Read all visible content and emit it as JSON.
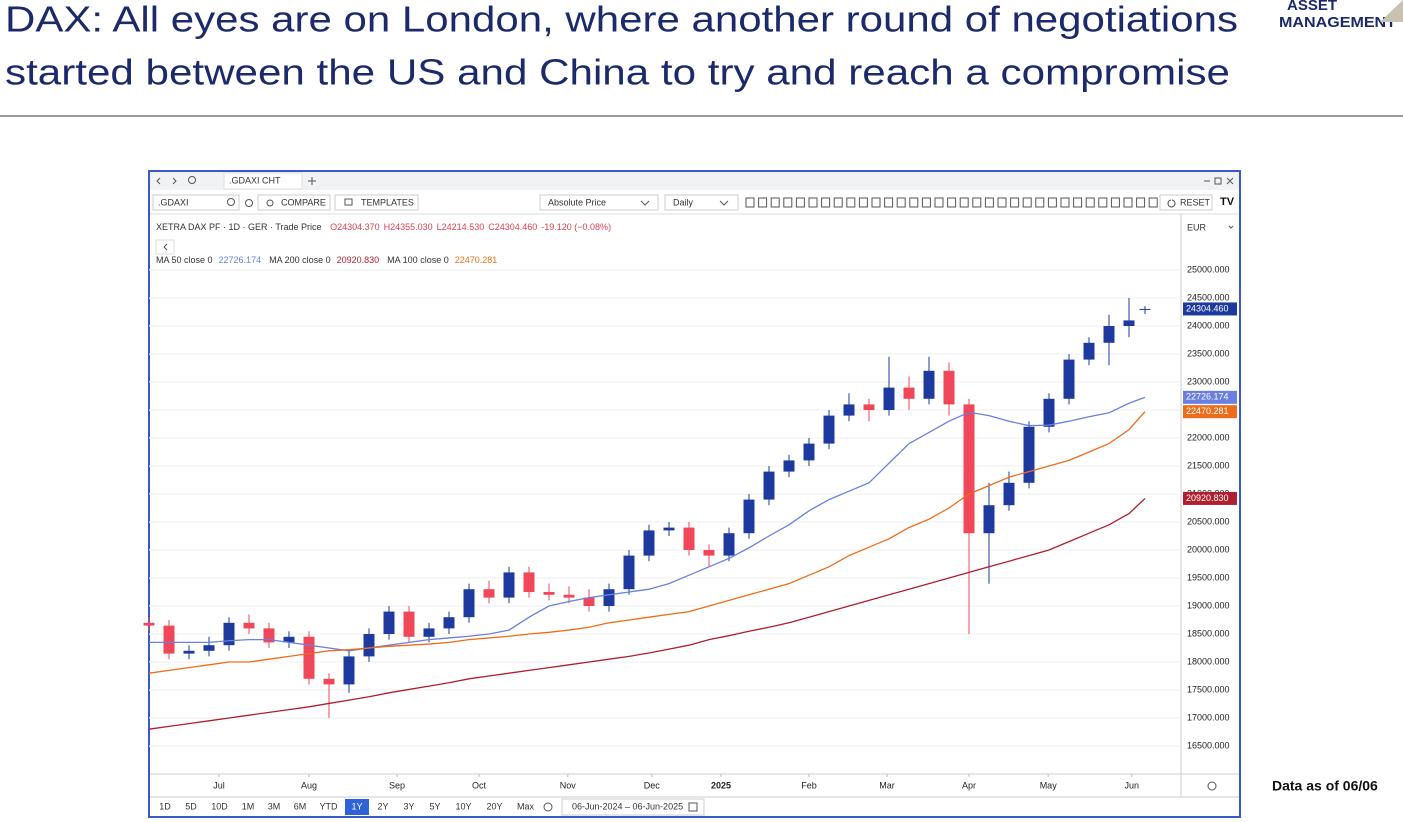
{
  "header": {
    "title_lines": [
      "DAX: All eyes are on London, where another round of negotiations",
      "started between the US and China to try and reach a compromise"
    ],
    "logo": [
      "ASSET",
      "MANAGEMENT"
    ]
  },
  "window": {
    "tab": ".GDAXI CHT",
    "symbol": ".GDAXI",
    "compare": "COMPARE",
    "templates": "TEMPLATES",
    "price_mode": "Absolute Price",
    "interval": "Daily",
    "reset": "RESET",
    "currency": "EUR",
    "periods": [
      "1D",
      "5D",
      "10D",
      "1M",
      "3M",
      "6M",
      "YTD",
      "1Y",
      "2Y",
      "3Y",
      "5Y",
      "10Y",
      "20Y",
      "Max"
    ],
    "active_period": "1Y",
    "date_range": "06-Jun-2024 – 06-Jun-2025"
  },
  "note": "Data as of 06/06",
  "chart_data": {
    "type": "candlestick",
    "instrument": "XETRA DAX PF · 1D · GER · Trade Price",
    "ohlc_labels": [
      "O24304.370",
      "H24355.030",
      "L24214.530",
      "C24304.460"
    ],
    "change_label": "-19.120 (−0.08%)",
    "up_color": "#1e3a9e",
    "down_color": "#f0475a",
    "x": [
      0,
      5,
      10,
      15,
      20,
      25,
      30,
      35,
      40,
      45,
      50,
      55,
      60,
      65,
      70,
      75,
      80,
      85,
      90,
      95,
      100,
      105,
      110,
      115,
      120,
      125,
      130,
      135,
      140,
      145,
      150,
      155,
      160,
      165,
      170,
      175,
      180,
      185,
      190,
      195,
      200,
      205,
      210,
      215,
      220,
      225,
      230,
      235,
      240,
      245,
      249
    ],
    "open": [
      18700,
      18650,
      18150,
      18200,
      18300,
      18700,
      18600,
      18350,
      18450,
      17700,
      17600,
      18100,
      18500,
      18900,
      18450,
      18600,
      18800,
      19300,
      19150,
      19600,
      19250,
      19200,
      19150,
      19000,
      19300,
      19900,
      20350,
      20400,
      20000,
      19900,
      20300,
      20900,
      21400,
      21600,
      21900,
      22400,
      22600,
      22500,
      22900,
      22700,
      23200,
      22600,
      20300,
      20800,
      21200,
      22200,
      22700,
      23400,
      23700,
      24000,
      24304.37
    ],
    "high": [
      18800,
      18750,
      18300,
      18450,
      18800,
      18850,
      18700,
      18550,
      18550,
      17800,
      18200,
      18600,
      19000,
      19000,
      18700,
      18900,
      19400,
      19450,
      19700,
      19700,
      19400,
      19350,
      19300,
      19400,
      20000,
      20450,
      20500,
      20500,
      20100,
      20400,
      21000,
      21500,
      21700,
      22000,
      22500,
      22800,
      22700,
      23450,
      23100,
      23450,
      23350,
      22700,
      21200,
      21400,
      22300,
      22800,
      23500,
      23800,
      24200,
      24500,
      24355.03
    ],
    "low": [
      18550,
      18050,
      18050,
      18100,
      18200,
      18500,
      18250,
      18250,
      17600,
      17000,
      17450,
      18000,
      18400,
      18350,
      18350,
      18500,
      18700,
      19050,
      19050,
      19150,
      19100,
      19050,
      18900,
      18900,
      19200,
      19800,
      20250,
      19900,
      19700,
      19800,
      20200,
      20800,
      21300,
      21500,
      21800,
      22300,
      22300,
      22400,
      22500,
      22600,
      22400,
      18500,
      19400,
      20700,
      21100,
      22100,
      22600,
      23300,
      23300,
      23800,
      24214.53
    ],
    "close": [
      18650,
      18150,
      18200,
      18300,
      18700,
      18600,
      18350,
      18450,
      17700,
      17600,
      18100,
      18500,
      18900,
      18450,
      18600,
      18800,
      19300,
      19150,
      19600,
      19250,
      19200,
      19150,
      19000,
      19300,
      19900,
      20350,
      20400,
      20000,
      19900,
      20300,
      20900,
      21400,
      21600,
      21900,
      22400,
      22600,
      22500,
      22900,
      22700,
      23200,
      22600,
      20300,
      20800,
      21200,
      22200,
      22700,
      23400,
      23700,
      24000,
      24100,
      24304.46
    ],
    "last_label": "24304.460",
    "series": [
      {
        "name": "MA 50 close 0",
        "color": "#6b7fe0",
        "last_label": "22726.174",
        "values": [
          18350,
          18350,
          18350,
          18350,
          18380,
          18400,
          18400,
          18350,
          18300,
          18250,
          18200,
          18250,
          18300,
          18350,
          18400,
          18430,
          18460,
          18500,
          18570,
          18800,
          19000,
          19080,
          19150,
          19200,
          19250,
          19300,
          19400,
          19550,
          19700,
          19850,
          20040,
          20250,
          20450,
          20700,
          20900,
          21050,
          21200,
          21550,
          21900,
          22100,
          22300,
          22460,
          22400,
          22300,
          22220,
          22230,
          22300,
          22380,
          22450,
          22620,
          22726.174
        ]
      },
      {
        "name": "MA 200 close 0",
        "color": "#b01e2f",
        "last_label": "20920.830",
        "values": [
          16800,
          16850,
          16900,
          16950,
          17000,
          17050,
          17100,
          17150,
          17200,
          17260,
          17320,
          17380,
          17450,
          17510,
          17570,
          17630,
          17700,
          17750,
          17800,
          17850,
          17900,
          17950,
          18000,
          18050,
          18100,
          18160,
          18230,
          18300,
          18400,
          18470,
          18550,
          18620,
          18700,
          18800,
          18900,
          19000,
          19100,
          19200,
          19300,
          19400,
          19500,
          19600,
          19700,
          19800,
          19900,
          20000,
          20150,
          20300,
          20450,
          20650,
          20920.83
        ]
      },
      {
        "name": "MA 100 close 0",
        "color": "#ef6c1a",
        "last_label": "22470.281",
        "values": [
          17800,
          17850,
          17900,
          17950,
          18000,
          18000,
          18050,
          18100,
          18150,
          18200,
          18220,
          18250,
          18280,
          18300,
          18320,
          18350,
          18400,
          18430,
          18460,
          18500,
          18530,
          18570,
          18620,
          18700,
          18750,
          18800,
          18850,
          18900,
          19000,
          19100,
          19200,
          19300,
          19400,
          19550,
          19700,
          19900,
          20050,
          20200,
          20400,
          20550,
          20750,
          21000,
          21150,
          21300,
          21400,
          21500,
          21600,
          21750,
          21900,
          22150,
          22470.281
        ]
      }
    ],
    "xlim": [
      0,
      258
    ],
    "xticks": [
      {
        "value": 17.5,
        "label": "Jul"
      },
      {
        "value": 40,
        "label": "Aug"
      },
      {
        "value": 62,
        "label": "Sep"
      },
      {
        "value": 82.5,
        "label": "Oct"
      },
      {
        "value": 104.7,
        "label": "Nov"
      },
      {
        "value": 125.7,
        "label": "Dec"
      },
      {
        "value": 143,
        "label": "2025"
      },
      {
        "value": 165,
        "label": "Feb"
      },
      {
        "value": 184.5,
        "label": "Mar"
      },
      {
        "value": 205,
        "label": "Apr"
      },
      {
        "value": 224.8,
        "label": "May"
      },
      {
        "value": 245.7,
        "label": "Jun"
      }
    ],
    "ylim": [
      16000,
      26000
    ],
    "yticks": [
      {
        "value": 16500,
        "label": "16500.000"
      },
      {
        "value": 17000,
        "label": "17000.000"
      },
      {
        "value": 17500,
        "label": "17500.000"
      },
      {
        "value": 18000,
        "label": "18000.000"
      },
      {
        "value": 18500,
        "label": "18500.000"
      },
      {
        "value": 19000,
        "label": "19000.000"
      },
      {
        "value": 19500,
        "label": "19500.000"
      },
      {
        "value": 20000,
        "label": "20000.000"
      },
      {
        "value": 20500,
        "label": "20500.000"
      },
      {
        "value": 21000,
        "label": "21000.000"
      },
      {
        "value": 21500,
        "label": "21500.000"
      },
      {
        "value": 22000,
        "label": "22000.000"
      },
      {
        "value": 22500,
        "label": "22500.000"
      },
      {
        "value": 23000,
        "label": "23000.000"
      },
      {
        "value": 23500,
        "label": "23500.000"
      },
      {
        "value": 24000,
        "label": "24000.000"
      },
      {
        "value": 24500,
        "label": "24500.000"
      },
      {
        "value": 25000,
        "label": "25000.000"
      }
    ],
    "grid": true
  }
}
